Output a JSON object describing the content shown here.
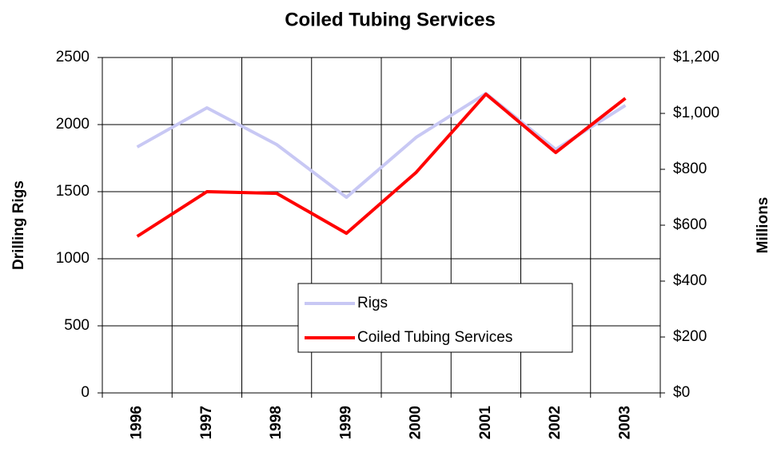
{
  "chart_data": {
    "type": "line",
    "title": "Coiled Tubing Services",
    "y_label": "Drilling Rigs",
    "y2_label": "Millions",
    "categories": [
      "1996",
      "1997",
      "1998",
      "1999",
      "2000",
      "2001",
      "2002",
      "2003"
    ],
    "series": [
      {
        "name": "Rigs",
        "color": "#c8c8f4",
        "values": [
          1833,
          2125,
          1851,
          1458,
          1905,
          2232,
          1815,
          2143
        ]
      },
      {
        "name": "Coiled Tubing Services",
        "color": "#ff0000",
        "axis": "y2",
        "values": [
          560,
          720,
          714,
          571,
          789,
          1069,
          860,
          1054
        ]
      }
    ],
    "ylim": [
      0,
      2500
    ],
    "yticks": [
      0,
      500,
      1000,
      1500,
      2000,
      2500
    ],
    "y2lim": [
      0,
      1200
    ],
    "y2ticks": [
      {
        "value": 0,
        "label": "$0"
      },
      {
        "value": 200,
        "label": "$200"
      },
      {
        "value": 400,
        "label": "$400"
      },
      {
        "value": 600,
        "label": "$600"
      },
      {
        "value": 800,
        "label": "$800"
      },
      {
        "value": 1000,
        "label": "$1,000"
      },
      {
        "value": 1200,
        "label": "$1,200"
      }
    ],
    "grid": true
  }
}
